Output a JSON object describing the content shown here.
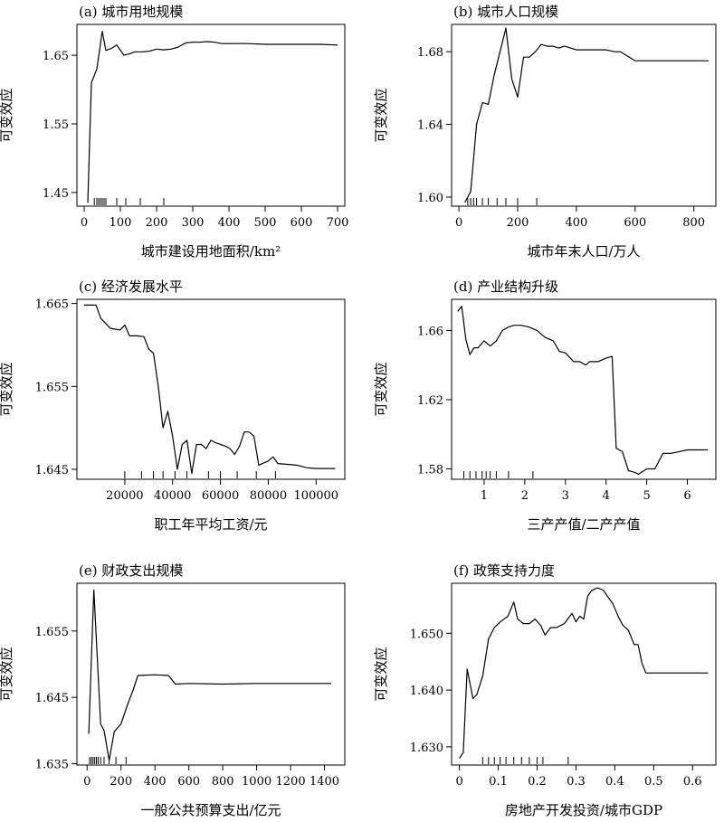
{
  "chart_data": [
    {
      "type": "line",
      "title": "(a) 城市用地规模",
      "xlabel": "城市建设用地面积/km²",
      "ylabel": "可变效应",
      "xlim": [
        -20,
        720
      ],
      "ylim": [
        1.43,
        1.695
      ],
      "xticks": [
        0,
        100,
        200,
        300,
        400,
        500,
        600,
        700
      ],
      "yticks": [
        1.45,
        1.55,
        1.65
      ],
      "ytick_labels": [
        "1.45",
        "1.55",
        "1.65"
      ],
      "rug": [
        28,
        35,
        40,
        45,
        50,
        55,
        60,
        90,
        115,
        155,
        220
      ],
      "x": [
        10,
        20,
        35,
        50,
        60,
        75,
        90,
        110,
        125,
        140,
        160,
        180,
        200,
        220,
        240,
        260,
        280,
        300,
        320,
        340,
        360,
        380,
        400,
        450,
        500,
        550,
        600,
        650,
        700
      ],
      "y": [
        1.435,
        1.61,
        1.63,
        1.685,
        1.657,
        1.66,
        1.665,
        1.65,
        1.652,
        1.655,
        1.655,
        1.656,
        1.659,
        1.658,
        1.659,
        1.662,
        1.668,
        1.669,
        1.669,
        1.67,
        1.669,
        1.667,
        1.667,
        1.667,
        1.666,
        1.666,
        1.666,
        1.666,
        1.665
      ]
    },
    {
      "type": "line",
      "title": "(b) 城市人口规模",
      "xlabel": "城市年末人口/万人",
      "ylabel": "可变效应",
      "xlim": [
        -25,
        875
      ],
      "ylim": [
        1.595,
        1.695
      ],
      "xticks": [
        0,
        200,
        400,
        600,
        800
      ],
      "yticks": [
        1.6,
        1.64,
        1.68
      ],
      "ytick_labels": [
        "1.60",
        "1.64",
        "1.68"
      ],
      "rug": [
        30,
        40,
        50,
        60,
        80,
        100,
        130,
        160,
        200,
        265
      ],
      "x": [
        20,
        40,
        60,
        80,
        100,
        120,
        140,
        160,
        180,
        200,
        220,
        240,
        260,
        280,
        300,
        320,
        340,
        360,
        400,
        450,
        500,
        530,
        550,
        600,
        700,
        800,
        850
      ],
      "y": [
        1.597,
        1.603,
        1.64,
        1.652,
        1.651,
        1.667,
        1.68,
        1.693,
        1.665,
        1.655,
        1.677,
        1.677,
        1.68,
        1.684,
        1.683,
        1.683,
        1.682,
        1.683,
        1.681,
        1.681,
        1.681,
        1.68,
        1.68,
        1.675,
        1.675,
        1.675,
        1.675
      ]
    },
    {
      "type": "line",
      "title": "(c) 经济发展水平",
      "xlabel": "职工年平均工资/元",
      "ylabel": "可变效应",
      "xlim": [
        0,
        112000
      ],
      "ylim": [
        1.6438,
        1.6655
      ],
      "xticks": [
        20000,
        40000,
        60000,
        80000,
        100000
      ],
      "yticks": [
        1.645,
        1.655,
        1.665
      ],
      "ytick_labels": [
        "1.645",
        "1.655",
        "1.665"
      ],
      "rug": [
        20000,
        27000,
        32000,
        36000,
        41000,
        46000,
        55000,
        60000,
        67000,
        75000,
        83000
      ],
      "x": [
        3000,
        8000,
        10000,
        14000,
        18000,
        20000,
        22000,
        25000,
        28000,
        30000,
        32000,
        34000,
        36000,
        38000,
        40000,
        42000,
        44000,
        46000,
        48000,
        50000,
        52000,
        54000,
        56000,
        58000,
        62000,
        64000,
        66000,
        68000,
        70000,
        72000,
        74000,
        76000,
        80000,
        82000,
        84000,
        88000,
        92000,
        96000,
        100000,
        108000
      ],
      "y": [
        1.6648,
        1.6648,
        1.6632,
        1.662,
        1.6618,
        1.6624,
        1.6611,
        1.6611,
        1.661,
        1.6595,
        1.659,
        1.655,
        1.65,
        1.652,
        1.649,
        1.645,
        1.648,
        1.6485,
        1.6445,
        1.648,
        1.648,
        1.6475,
        1.6485,
        1.6482,
        1.6478,
        1.6475,
        1.6468,
        1.6478,
        1.6495,
        1.6495,
        1.649,
        1.6455,
        1.646,
        1.6465,
        1.6457,
        1.6456,
        1.6455,
        1.6452,
        1.6451,
        1.6451
      ]
    },
    {
      "type": "line",
      "title": "(d) 产业结构升级",
      "xlabel": "三产产值/二产产值",
      "ylabel": "可变效应",
      "xlim": [
        0.2,
        6.7
      ],
      "ylim": [
        1.574,
        1.678
      ],
      "xticks": [
        1,
        2,
        3,
        4,
        5,
        6
      ],
      "yticks": [
        1.58,
        1.62,
        1.66
      ],
      "ytick_labels": [
        "1.58",
        "1.62",
        "1.66"
      ],
      "rug": [
        0.5,
        0.65,
        0.8,
        0.95,
        1.05,
        1.15,
        1.3,
        1.6,
        2.2
      ],
      "x": [
        0.35,
        0.45,
        0.55,
        0.65,
        0.75,
        0.85,
        1.0,
        1.15,
        1.3,
        1.45,
        1.6,
        1.75,
        1.9,
        2.1,
        2.3,
        2.5,
        2.7,
        2.85,
        3.0,
        3.2,
        3.35,
        3.5,
        3.6,
        3.8,
        4.0,
        4.15,
        4.25,
        4.4,
        4.55,
        4.7,
        4.8,
        5.0,
        5.2,
        5.4,
        5.6,
        5.8,
        6.0,
        6.5
      ],
      "y": [
        1.671,
        1.674,
        1.655,
        1.646,
        1.65,
        1.65,
        1.654,
        1.651,
        1.654,
        1.66,
        1.662,
        1.663,
        1.663,
        1.662,
        1.66,
        1.656,
        1.654,
        1.648,
        1.647,
        1.642,
        1.642,
        1.64,
        1.642,
        1.642,
        1.644,
        1.645,
        1.592,
        1.59,
        1.579,
        1.578,
        1.577,
        1.58,
        1.58,
        1.589,
        1.589,
        1.59,
        1.591,
        1.591
      ]
    },
    {
      "type": "line",
      "title": "(e) 财政支出规模",
      "xlabel": "一般公共预算支出/亿元",
      "ylabel": "可变效应",
      "xlim": [
        -60,
        1520
      ],
      "ylim": [
        1.6348,
        1.6622
      ],
      "xticks": [
        0,
        200,
        400,
        600,
        800,
        1000,
        1200,
        1400
      ],
      "yticks": [
        1.635,
        1.645,
        1.655
      ],
      "ytick_labels": [
        "1.635",
        "1.645",
        "1.655"
      ],
      "rug": [
        15,
        25,
        35,
        45,
        55,
        65,
        80,
        100,
        130,
        170,
        230
      ],
      "x": [
        10,
        40,
        80,
        100,
        130,
        160,
        200,
        240,
        270,
        300,
        400,
        480,
        520,
        600,
        800,
        1000,
        1200,
        1440
      ],
      "y": [
        1.6395,
        1.6612,
        1.641,
        1.64,
        1.6355,
        1.6398,
        1.641,
        1.644,
        1.646,
        1.6483,
        1.6484,
        1.6483,
        1.647,
        1.6471,
        1.647,
        1.6471,
        1.6471,
        1.6471
      ]
    },
    {
      "type": "line",
      "title": "(f) 政策支持力度",
      "xlabel": "房地产开发投资/城市GDP",
      "ylabel": "可变效应",
      "xlim": [
        -0.02,
        0.66
      ],
      "ylim": [
        1.6268,
        1.6588
      ],
      "xticks": [
        0,
        0.1,
        0.2,
        0.3,
        0.4,
        0.5,
        0.6
      ],
      "yticks": [
        1.63,
        1.64,
        1.65
      ],
      "ytick_labels": [
        "1.630",
        "1.640",
        "1.650"
      ],
      "rug": [
        0.06,
        0.075,
        0.09,
        0.105,
        0.12,
        0.14,
        0.16,
        0.18,
        0.2,
        0.215,
        0.28
      ],
      "x": [
        0.0,
        0.01,
        0.02,
        0.035,
        0.045,
        0.06,
        0.075,
        0.09,
        0.105,
        0.125,
        0.14,
        0.15,
        0.165,
        0.18,
        0.195,
        0.21,
        0.22,
        0.235,
        0.25,
        0.27,
        0.29,
        0.3,
        0.31,
        0.32,
        0.33,
        0.34,
        0.355,
        0.37,
        0.38,
        0.395,
        0.41,
        0.42,
        0.435,
        0.45,
        0.46,
        0.47,
        0.48,
        0.49,
        0.55,
        0.64
      ],
      "y": [
        1.628,
        1.629,
        1.6437,
        1.6385,
        1.6392,
        1.6425,
        1.649,
        1.651,
        1.652,
        1.653,
        1.6555,
        1.6525,
        1.6517,
        1.6517,
        1.6525,
        1.6513,
        1.6497,
        1.651,
        1.651,
        1.6517,
        1.6535,
        1.652,
        1.653,
        1.6525,
        1.6565,
        1.6575,
        1.658,
        1.6576,
        1.6566,
        1.6552,
        1.6528,
        1.6515,
        1.6505,
        1.648,
        1.648,
        1.6447,
        1.643,
        1.643,
        1.643,
        1.643
      ]
    }
  ]
}
